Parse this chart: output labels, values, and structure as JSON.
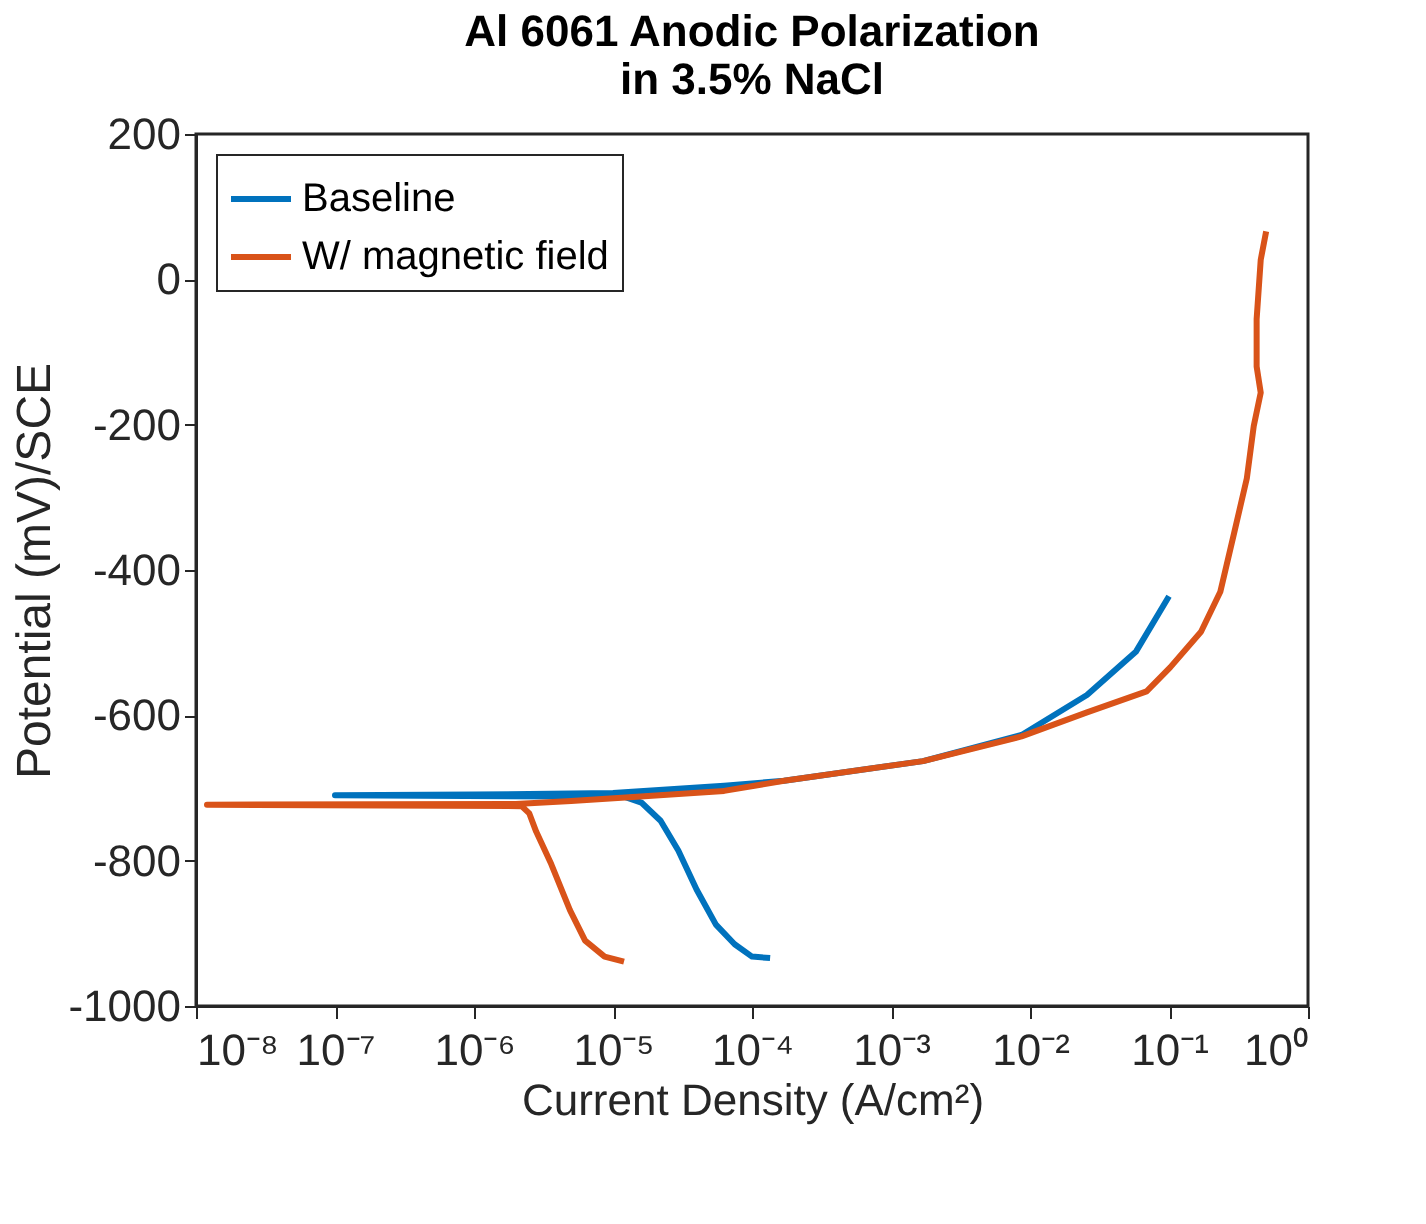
{
  "chart_data": {
    "type": "line",
    "title": "Al 6061 Anodic Polarization\nin 3.5% NaCl",
    "xlabel": "Current Density (A/cm²)",
    "ylabel": "Potential (mV)/SCE",
    "log": "x",
    "xlim": [
      1e-08,
      1
    ],
    "ylim": [
      -1000,
      200
    ],
    "xticks": [
      {
        "value": 1e-08,
        "label": "10⁻⁸"
      },
      {
        "value": 1e-07,
        "label": "10⁻⁷"
      },
      {
        "value": 1e-06,
        "label": "10⁻⁶"
      },
      {
        "value": 1e-05,
        "label": "10⁻⁵"
      },
      {
        "value": 0.0001,
        "label": "10⁻⁴"
      },
      {
        "value": 0.001,
        "label": "10⁻³"
      },
      {
        "value": 0.01,
        "label": "10⁻²"
      },
      {
        "value": 0.1,
        "label": "10⁻¹"
      },
      {
        "value": 1,
        "label": "10⁰"
      }
    ],
    "yticks": [
      -1000,
      -800,
      -600,
      -400,
      -200,
      0,
      200
    ],
    "grid": false,
    "legend": "top left",
    "marker": "none",
    "line_style": "solid",
    "series": [
      {
        "name": "Baseline",
        "color": "#0072bd",
        "x": [
          0.000135,
          0.0001,
          7.5e-05,
          5.5e-05,
          4e-05,
          2.95e-05,
          2.2e-05,
          1.6e-05,
          1.2e-05,
          1e-07,
          1e-06,
          1e-05,
          6.3e-05,
          0.00017,
          0.0017,
          0.0087,
          0.0257,
          0.058,
          0.1
        ],
        "values": [
          -934,
          -932,
          -915,
          -888,
          -840,
          -786,
          -745,
          -720,
          -712,
          -710,
          -709,
          -707,
          -697,
          -690,
          -663,
          -627,
          -572,
          -512,
          -436
        ]
      },
      {
        "name": "W/ magnetic field",
        "color": "#d95319",
        "x": [
          1.2e-05,
          8.7e-06,
          6.3e-06,
          4.9e-06,
          3.6e-06,
          2.8e-06,
          2.5e-06,
          2.2e-06,
          1.2e-08,
          2e-06,
          5e-06,
          1.23e-05,
          6.3e-05,
          0.00017,
          0.0017,
          0.0087,
          0.0257,
          0.069,
          0.102,
          0.17,
          0.234,
          0.295,
          0.363,
          0.407,
          0.457,
          0.427,
          0.427,
          0.457,
          0.5
        ],
        "values": [
          -939,
          -932,
          -910,
          -868,
          -805,
          -760,
          -735,
          -725,
          -723,
          -722,
          -718,
          -713,
          -704,
          -690,
          -663,
          -629,
          -596,
          -567,
          -534,
          -485,
          -430,
          -348,
          -274,
          -202,
          -156,
          -120,
          -55,
          27,
          66
        ]
      }
    ]
  }
}
